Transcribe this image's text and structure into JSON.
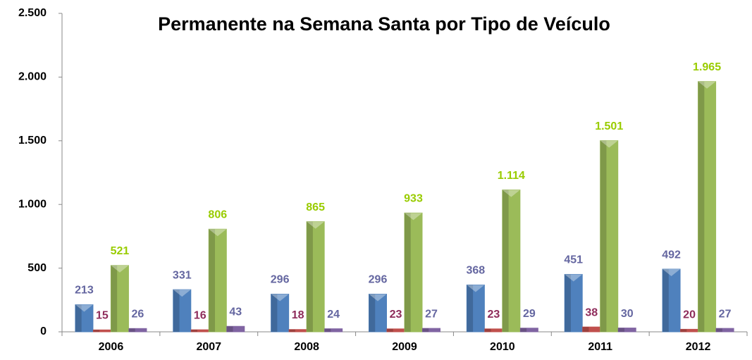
{
  "chart_data": {
    "type": "bar",
    "title": "Permanente na Semana Santa por Tipo de Veículo",
    "categories": [
      "2006",
      "2007",
      "2008",
      "2009",
      "2010",
      "2011",
      "2012"
    ],
    "series": [
      {
        "color": "#4f81bd",
        "label_color": "#6466a0",
        "values": [
          213,
          331,
          296,
          296,
          368,
          451,
          492
        ]
      },
      {
        "color": "#c0504d",
        "label_color": "#8e2b5a",
        "values": [
          15,
          16,
          18,
          23,
          23,
          38,
          20
        ]
      },
      {
        "color": "#9bbb59",
        "label_color": "#99cc00",
        "values": [
          521,
          806,
          865,
          933,
          1114,
          1501,
          1965
        ],
        "value_labels": [
          "521",
          "806",
          "865",
          "933",
          "1.114",
          "1.501",
          "1.965"
        ]
      },
      {
        "color": "#8064a2",
        "label_color": "#6466a0",
        "values": [
          26,
          43,
          24,
          27,
          29,
          30,
          27
        ]
      }
    ],
    "ylim": [
      0,
      2500
    ],
    "yticks": [
      0,
      500,
      {
        "value": 1000,
        "label": "1.000"
      },
      {
        "value": 1500,
        "label": "1.500"
      },
      {
        "value": 2000,
        "label": "2.000"
      },
      {
        "value": 2500,
        "label": "2.500"
      }
    ],
    "grid": false
  }
}
